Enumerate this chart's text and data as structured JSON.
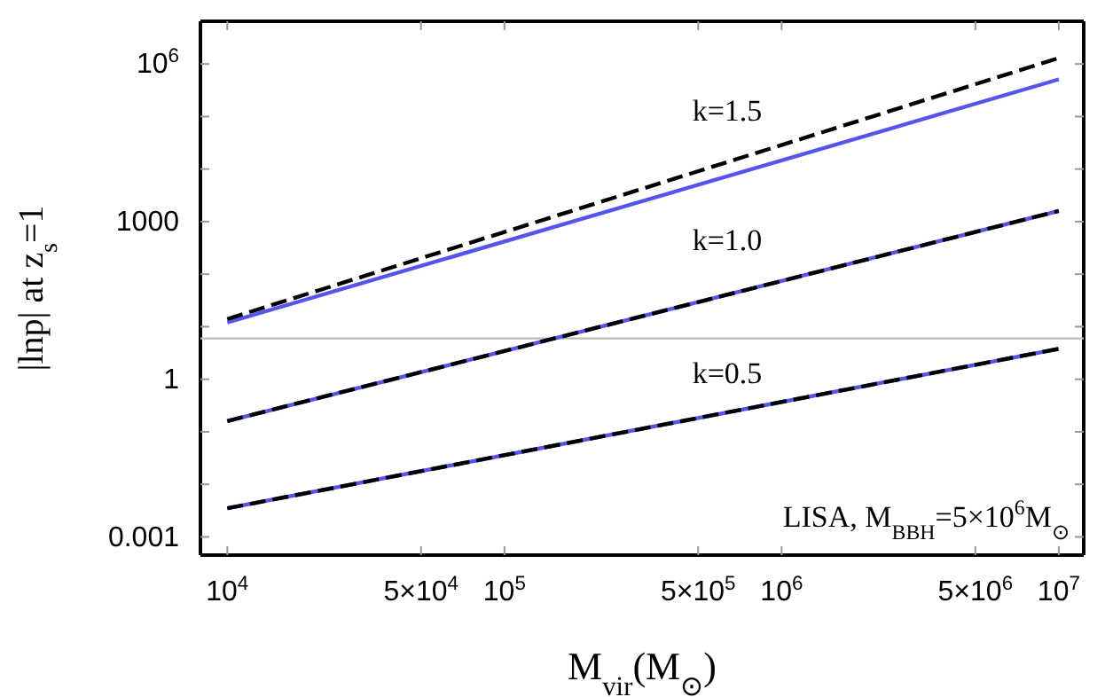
{
  "chart_data": {
    "type": "line",
    "xlabel": "M$_{vir}$(M$_{⊙}$)",
    "ylabel": "|lnp| at z$_{s}$=1",
    "log": "xy",
    "grid": false,
    "line_style": "solid",
    "marker": "none",
    "xlim": [
      8000,
      12300000
    ],
    "ylim": [
      0.00045,
      6500000
    ],
    "xticks": [
      {
        "value": 10000,
        "label": "10$^{4}$"
      },
      {
        "value": 50000,
        "label": "5×10$^{4}$"
      },
      {
        "value": 100000,
        "label": "10$^{5}$"
      },
      {
        "value": 500000,
        "label": "5×10$^{5}$"
      },
      {
        "value": 1000000,
        "label": "10$^{6}$"
      },
      {
        "value": 5000000,
        "label": "5×10$^{6}$"
      },
      {
        "value": 10000000,
        "label": "10$^{7}$"
      }
    ],
    "yticks": [
      0.001,
      {
        "value": 0.01,
        "label": null
      },
      {
        "value": 0.1,
        "label": null
      },
      1,
      {
        "value": 10,
        "label": null
      },
      {
        "value": 100,
        "label": null
      },
      1000,
      {
        "value": 10000,
        "label": null
      },
      {
        "value": 100000,
        "label": null
      },
      {
        "value": 1000000,
        "label": "10$^{6}$"
      }
    ],
    "x": [
      10000,
      10000000
    ],
    "series": [
      {
        "color": "#5555ee",
        "values": [
          12,
          510000
        ]
      },
      {
        "color": "#000000",
        "line_style": "dashed",
        "values": [
          14,
          1300000
        ]
      },
      {
        "color": "#5555ee",
        "values": [
          0.16,
          1600
        ]
      },
      {
        "color": "#000000",
        "line_style": "dashed",
        "values": [
          0.16,
          1600
        ]
      },
      {
        "color": "#5555ee",
        "values": [
          0.0035,
          3.8
        ]
      },
      {
        "color": "#000000",
        "line_style": "dashed",
        "values": [
          0.0035,
          3.8
        ]
      }
    ],
    "ref_lines": [
      {
        "axis": "y",
        "value": 6,
        "label": null,
        "color": "#bbbbbb"
      }
    ],
    "annotations": [
      "k=1.5",
      "k=1.0",
      "k=0.5",
      "LISA, M$_{BBH}$=5×10$^{6}$M$_{⊙}$"
    ]
  }
}
